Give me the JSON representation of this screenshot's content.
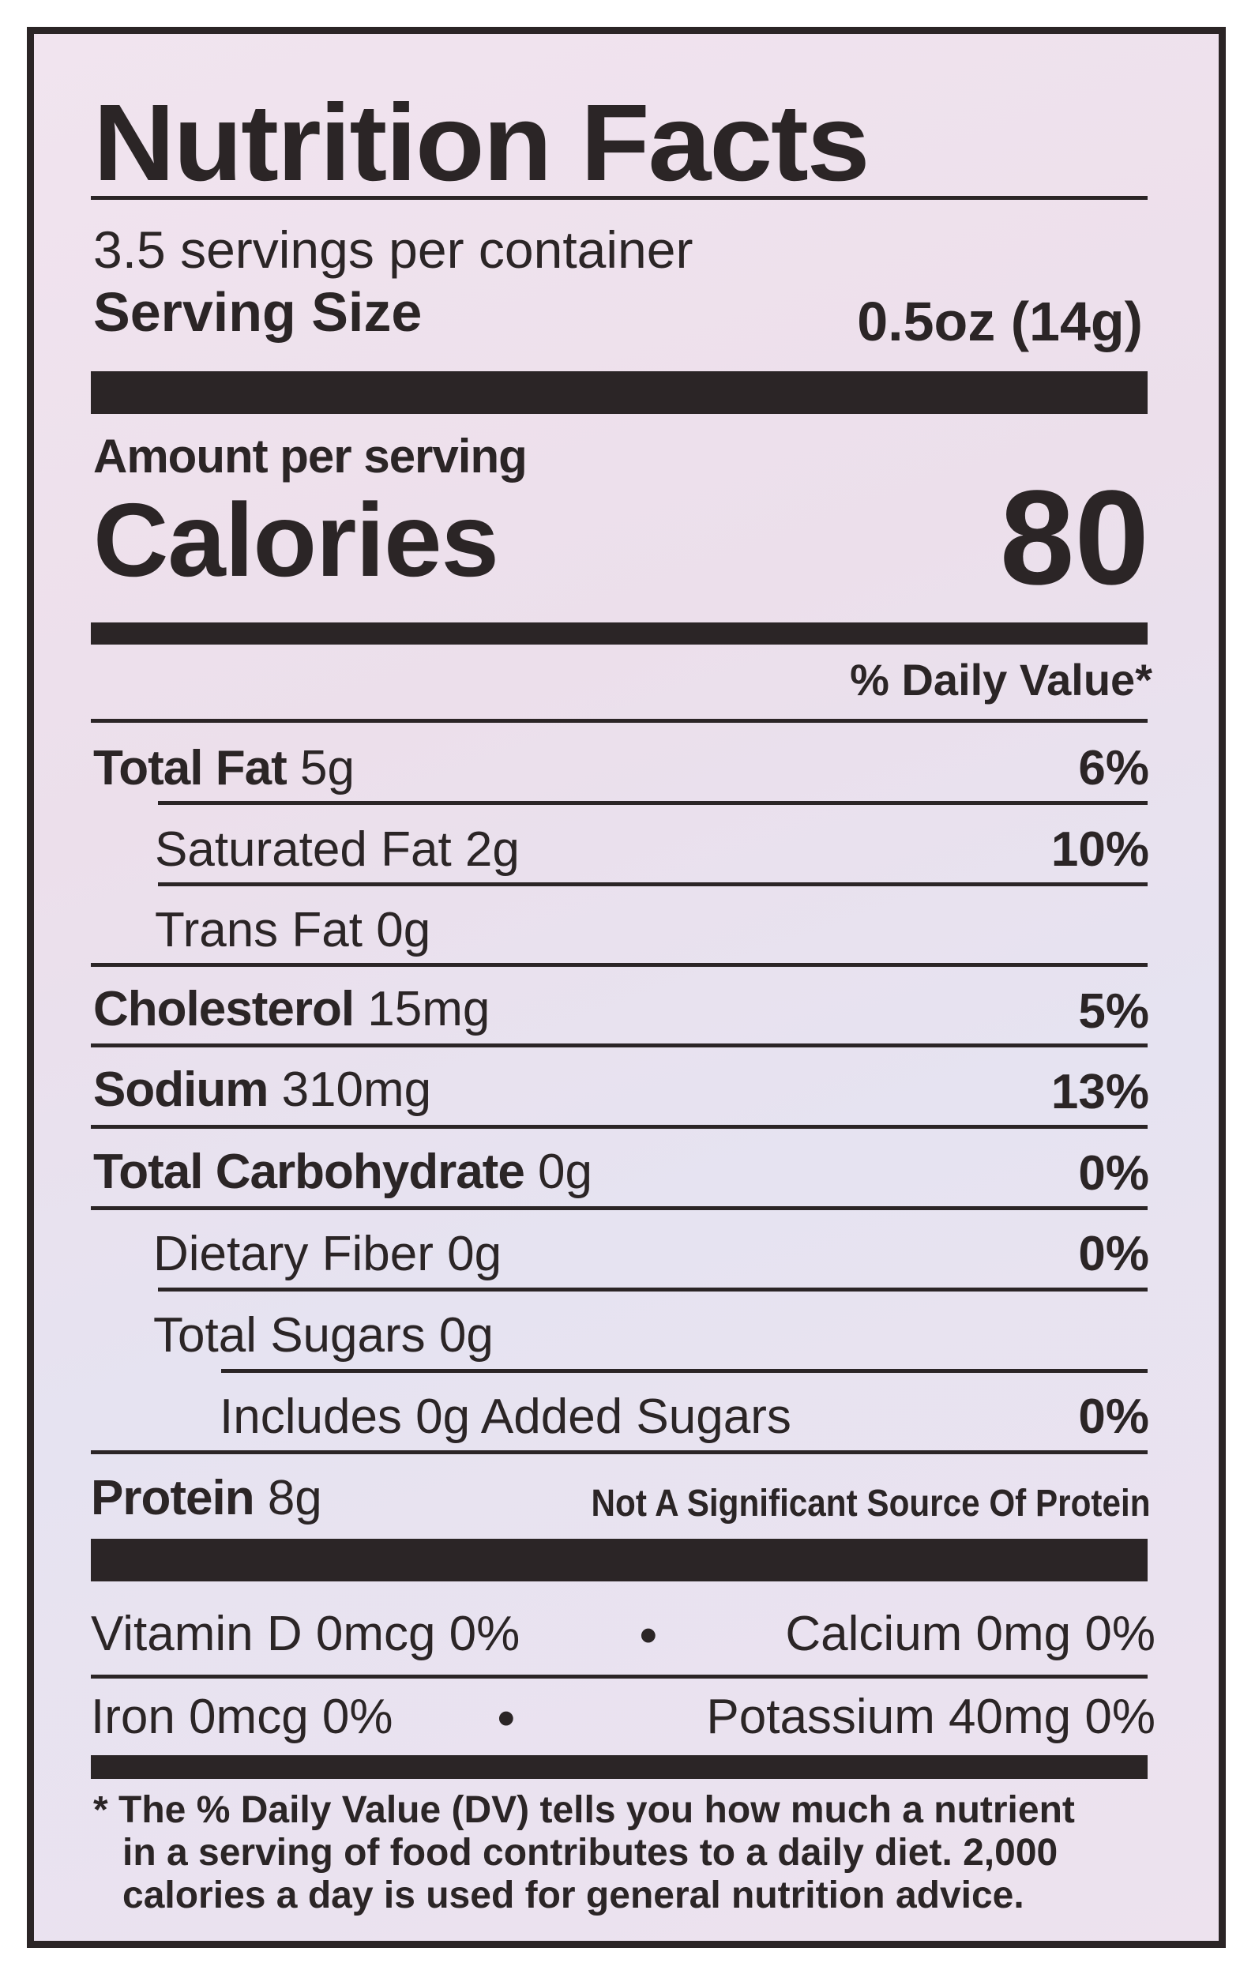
{
  "title": "Nutrition Facts",
  "servings_per_container": "3.5 servings per container",
  "serving_size_label": "Serving Size",
  "serving_size_value": "0.5oz (14g)",
  "amount_per_serving": "Amount per serving",
  "calories_label": "Calories",
  "calories_value": "80",
  "daily_value_header": "% Daily Value*",
  "nutrients": [
    {
      "name": "Total Fat",
      "amount": "5g",
      "dv": "6%"
    },
    {
      "name": "Saturated Fat 2g",
      "dv": "10%"
    },
    {
      "name": "Trans Fat 0g",
      "dv": ""
    },
    {
      "name": "Cholesterol",
      "amount": "15mg",
      "dv": "5%"
    },
    {
      "name": "Sodium",
      "amount": "310mg",
      "dv": "13%"
    },
    {
      "name": "Total Carbohydrate",
      "amount": "0g",
      "dv": "0%"
    },
    {
      "name": "Dietary Fiber 0g",
      "dv": "0%"
    },
    {
      "name": "Total Sugars 0g",
      "dv": ""
    },
    {
      "name": "Includes 0g Added Sugars",
      "dv": "0%"
    },
    {
      "name": "Protein",
      "amount": "8g",
      "note": "Not A Significant Source Of Protein"
    }
  ],
  "vitamins": [
    {
      "text": "Vitamin D 0mcg 0%"
    },
    {
      "text": "Calcium 0mg 0%"
    },
    {
      "text": "Iron 0mcg 0%"
    },
    {
      "text": "Potassium 40mg 0%"
    }
  ],
  "separator": "•",
  "footnote": [
    "* The % Daily Value (DV) tells you how much a nutrient",
    "in a serving of food contributes to a daily diet. 2,000",
    "calories a day is used for general nutrition advice."
  ]
}
